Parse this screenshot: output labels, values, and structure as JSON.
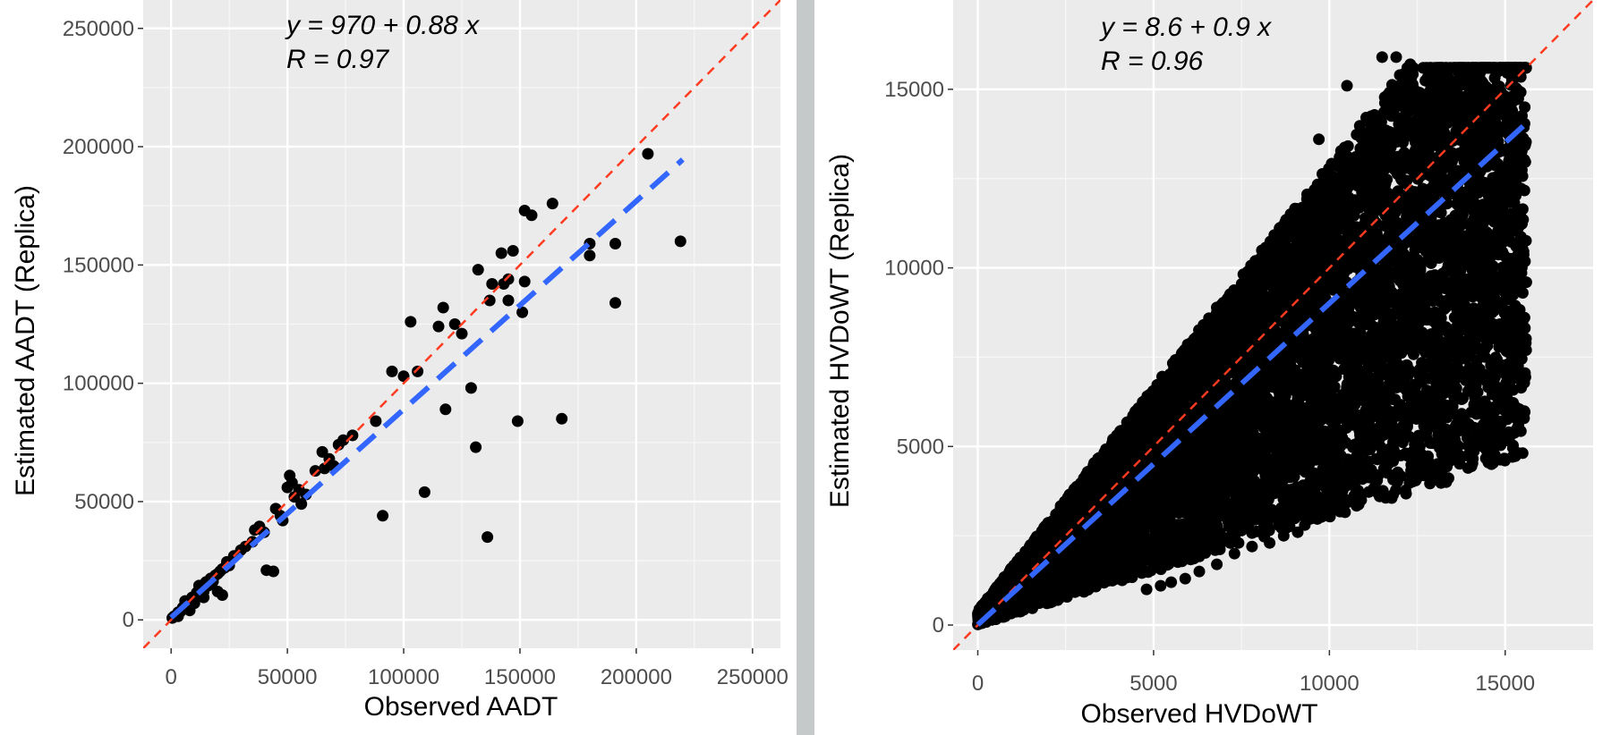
{
  "chart_data": [
    {
      "type": "scatter",
      "xlabel": "Observed AADT",
      "ylabel": "Estimated AADT (Replica)",
      "xlim": [
        -12000,
        262000
      ],
      "ylim": [
        -12000,
        262000
      ],
      "xticks": [
        0,
        50000,
        100000,
        150000,
        200000,
        250000
      ],
      "yticks": [
        0,
        50000,
        100000,
        150000,
        200000,
        250000
      ],
      "xtick_labels": [
        "0",
        "50000",
        "100000",
        "150000",
        "200000",
        "250000"
      ],
      "ytick_labels": [
        "0",
        "50000",
        "100000",
        "150000",
        "200000",
        "250000"
      ],
      "equation_line": "y = 970 + 0.88 x",
      "r_line": "R = 0.97",
      "fit": {
        "intercept": 970,
        "slope": 0.88,
        "x_range": [
          0,
          220000
        ],
        "color": "#3366ff"
      },
      "identity_line": {
        "color": "#ff3b20"
      },
      "points": [
        [
          500,
          800
        ],
        [
          1200,
          1500
        ],
        [
          2000,
          1800
        ],
        [
          3000,
          3200
        ],
        [
          4000,
          3500
        ],
        [
          5000,
          5200
        ],
        [
          6000,
          4800
        ],
        [
          7000,
          7500
        ],
        [
          8000,
          6500
        ],
        [
          9000,
          9500
        ],
        [
          10000,
          8800
        ],
        [
          11000,
          11500
        ],
        [
          12000,
          10500
        ],
        [
          13000,
          13200
        ],
        [
          14000,
          12000
        ],
        [
          15000,
          16000
        ],
        [
          16000,
          14500
        ],
        [
          17000,
          17500
        ],
        [
          18000,
          16200
        ],
        [
          19000,
          18800
        ],
        [
          20000,
          19500
        ],
        [
          21000,
          20500
        ],
        [
          22000,
          21500
        ],
        [
          23000,
          22000
        ],
        [
          24000,
          24500
        ],
        [
          25000,
          23000
        ],
        [
          6000,
          8000
        ],
        [
          10000,
          7000
        ],
        [
          14000,
          9500
        ],
        [
          20000,
          12000
        ],
        [
          22000,
          10500
        ],
        [
          3000,
          1500
        ],
        [
          8000,
          4000
        ],
        [
          12000,
          14500
        ],
        [
          27000,
          27000
        ],
        [
          30000,
          29500
        ],
        [
          32000,
          31000
        ],
        [
          35000,
          33000
        ],
        [
          36000,
          38000
        ],
        [
          38000,
          39500
        ],
        [
          40000,
          37000
        ],
        [
          41000,
          21000
        ],
        [
          44000,
          20500
        ],
        [
          45000,
          47000
        ],
        [
          47000,
          44000
        ],
        [
          48000,
          42000
        ],
        [
          50000,
          56000
        ],
        [
          51000,
          61000
        ],
        [
          52000,
          58000
        ],
        [
          53000,
          52000
        ],
        [
          55000,
          55000
        ],
        [
          56000,
          49000
        ],
        [
          58000,
          53000
        ],
        [
          62000,
          63000
        ],
        [
          65000,
          71000
        ],
        [
          66000,
          64000
        ],
        [
          68000,
          68000
        ],
        [
          70000,
          65000
        ],
        [
          72000,
          74000
        ],
        [
          74000,
          76000
        ],
        [
          78000,
          78000
        ],
        [
          88000,
          84000
        ],
        [
          91000,
          44000
        ],
        [
          95000,
          105000
        ],
        [
          100000,
          103000
        ],
        [
          103000,
          126000
        ],
        [
          106000,
          105000
        ],
        [
          109000,
          54000
        ],
        [
          115000,
          124000
        ],
        [
          117000,
          132000
        ],
        [
          118000,
          89000
        ],
        [
          122000,
          125000
        ],
        [
          125000,
          121000
        ],
        [
          129000,
          98000
        ],
        [
          131000,
          73000
        ],
        [
          132000,
          148000
        ],
        [
          136000,
          35000
        ],
        [
          137000,
          135000
        ],
        [
          138000,
          142000
        ],
        [
          142000,
          155000
        ],
        [
          143000,
          142000
        ],
        [
          145000,
          144000
        ],
        [
          145000,
          135000
        ],
        [
          147000,
          156000
        ],
        [
          149000,
          84000
        ],
        [
          151000,
          130000
        ],
        [
          152000,
          143000
        ],
        [
          152000,
          173000
        ],
        [
          155000,
          171000
        ],
        [
          164000,
          176000
        ],
        [
          168000,
          85000
        ],
        [
          180000,
          159000
        ],
        [
          180000,
          154000
        ],
        [
          191000,
          159000
        ],
        [
          191000,
          134000
        ],
        [
          205000,
          197000
        ],
        [
          219000,
          160000
        ]
      ]
    },
    {
      "type": "scatter",
      "xlabel": "Observed HVDoWT",
      "ylabel": "Estimated HVDoWT (Replica)",
      "xlim": [
        -700,
        17500
      ],
      "ylim": [
        -700,
        17500
      ],
      "xticks": [
        0,
        5000,
        10000,
        15000
      ],
      "yticks": [
        0,
        5000,
        10000,
        15000
      ],
      "xtick_labels": [
        "0",
        "5000",
        "10000",
        "15000"
      ],
      "ytick_labels": [
        "0",
        "5000",
        "10000",
        "15000"
      ],
      "equation_line": "y = 8.6 + 0.9 x",
      "r_line": "R = 0.96",
      "fit": {
        "intercept": 8.6,
        "slope": 0.9,
        "x_range": [
          0,
          15600
        ],
        "color": "#3366ff"
      },
      "identity_line": {
        "color": "#ff3b20"
      },
      "density": {
        "point_count_approx": 9000,
        "x_max": 15600,
        "slope_high": 1.25,
        "slope_low": 0.3
      },
      "points": [
        [
          11500,
          15900
        ],
        [
          11900,
          15900
        ],
        [
          12300,
          15700
        ],
        [
          12100,
          15400
        ],
        [
          10500,
          15100
        ],
        [
          12200,
          15000
        ],
        [
          11200,
          14200
        ],
        [
          11300,
          13900
        ],
        [
          13500,
          14300
        ],
        [
          14200,
          14300
        ],
        [
          14800,
          14300
        ],
        [
          14600,
          13600
        ],
        [
          15300,
          13700
        ],
        [
          15600,
          9600
        ],
        [
          15500,
          9300
        ],
        [
          15000,
          9300
        ],
        [
          14300,
          9600
        ],
        [
          14000,
          10200
        ],
        [
          14700,
          10400
        ],
        [
          13300,
          7400
        ],
        [
          13500,
          7600
        ],
        [
          12900,
          7400
        ],
        [
          11800,
          7100
        ],
        [
          11000,
          5300
        ],
        [
          10800,
          5000
        ],
        [
          10800,
          4400
        ],
        [
          10300,
          4200
        ],
        [
          9300,
          2800
        ],
        [
          9100,
          2600
        ],
        [
          8700,
          2500
        ],
        [
          8300,
          2300
        ],
        [
          7800,
          2200
        ],
        [
          7300,
          2000
        ],
        [
          6800,
          1700
        ],
        [
          6300,
          1500
        ],
        [
          5900,
          1300
        ],
        [
          5500,
          1200
        ],
        [
          5200,
          1100
        ],
        [
          4800,
          1000
        ],
        [
          10000,
          4500
        ],
        [
          13800,
          11800
        ],
        [
          12900,
          11300
        ],
        [
          12200,
          10900
        ],
        [
          13000,
          9800
        ],
        [
          10500,
          12800
        ],
        [
          9700,
          13600
        ],
        [
          10900,
          13100
        ]
      ]
    }
  ]
}
